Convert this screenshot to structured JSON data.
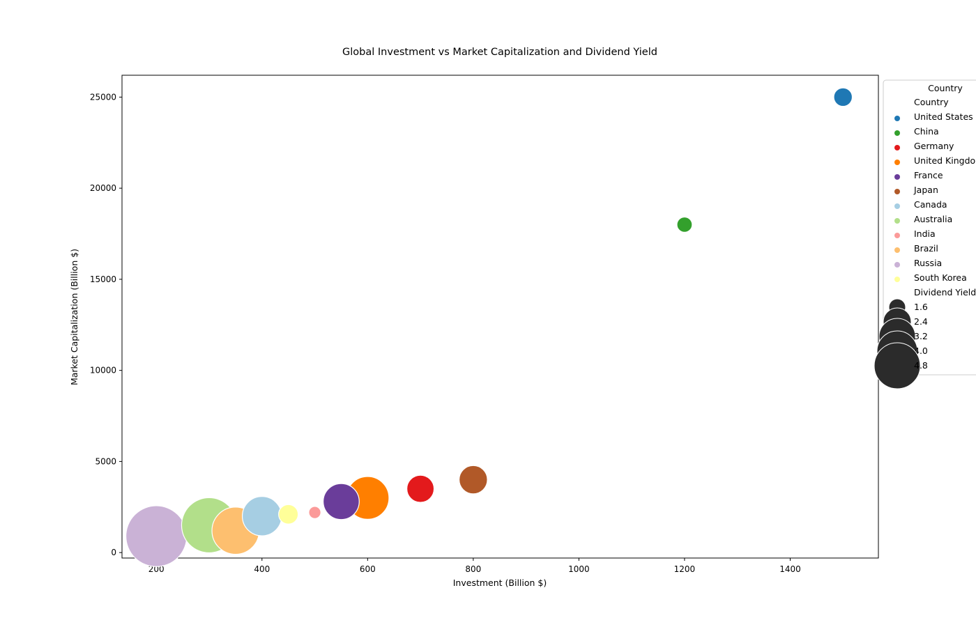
{
  "chart_data": {
    "type": "scatter",
    "title": "Global Investment vs Market Capitalization and Dividend Yield",
    "xlabel": "Investment (Billion $)",
    "ylabel": "Market Capitalization (Billion $)",
    "xlim": [
      135,
      1567
    ],
    "ylim": [
      -300,
      26200
    ],
    "x_ticks": [
      200,
      400,
      600,
      800,
      1000,
      1200,
      1400
    ],
    "y_ticks": [
      0,
      5000,
      10000,
      15000,
      20000,
      25000
    ],
    "grid": false,
    "legend_placement": "outside-right",
    "legend": {
      "title": "Country",
      "hue_header": "Country",
      "size_header": "Dividend Yield",
      "size_values": [
        "1.6",
        "2.4",
        "3.2",
        "4.0",
        "4.8"
      ],
      "size_color": "#2b2b2b"
    },
    "points": [
      {
        "country": "United States",
        "x": 1500,
        "y": 25000,
        "dividend_yield": 1.4,
        "color": "#1f78b4"
      },
      {
        "country": "China",
        "x": 1200,
        "y": 18000,
        "dividend_yield": 1.1,
        "color": "#33a02c"
      },
      {
        "country": "Germany",
        "x": 700,
        "y": 3500,
        "dividend_yield": 2.2,
        "color": "#e31a1c"
      },
      {
        "country": "United Kingdom",
        "x": 600,
        "y": 3000,
        "dividend_yield": 3.6,
        "color": "#ff7f00"
      },
      {
        "country": "France",
        "x": 550,
        "y": 2800,
        "dividend_yield": 3.0,
        "color": "#6a3d9a"
      },
      {
        "country": "Japan",
        "x": 800,
        "y": 4000,
        "dividend_yield": 2.3,
        "color": "#b15928"
      },
      {
        "country": "Canada",
        "x": 400,
        "y": 2000,
        "dividend_yield": 3.3,
        "color": "#a6cee3"
      },
      {
        "country": "Australia",
        "x": 300,
        "y": 1500,
        "dividend_yield": 4.7,
        "color": "#b2df8a"
      },
      {
        "country": "India",
        "x": 500,
        "y": 2200,
        "dividend_yield": 0.8,
        "color": "#fb9a99"
      },
      {
        "country": "Brazil",
        "x": 350,
        "y": 1200,
        "dividend_yield": 4.0,
        "color": "#fdbf6f"
      },
      {
        "country": "Russia",
        "x": 200,
        "y": 900,
        "dividend_yield": 5.2,
        "color": "#cab2d6"
      },
      {
        "country": "South Korea",
        "x": 450,
        "y": 2100,
        "dividend_yield": 1.5,
        "color": "#ffff99"
      }
    ]
  }
}
